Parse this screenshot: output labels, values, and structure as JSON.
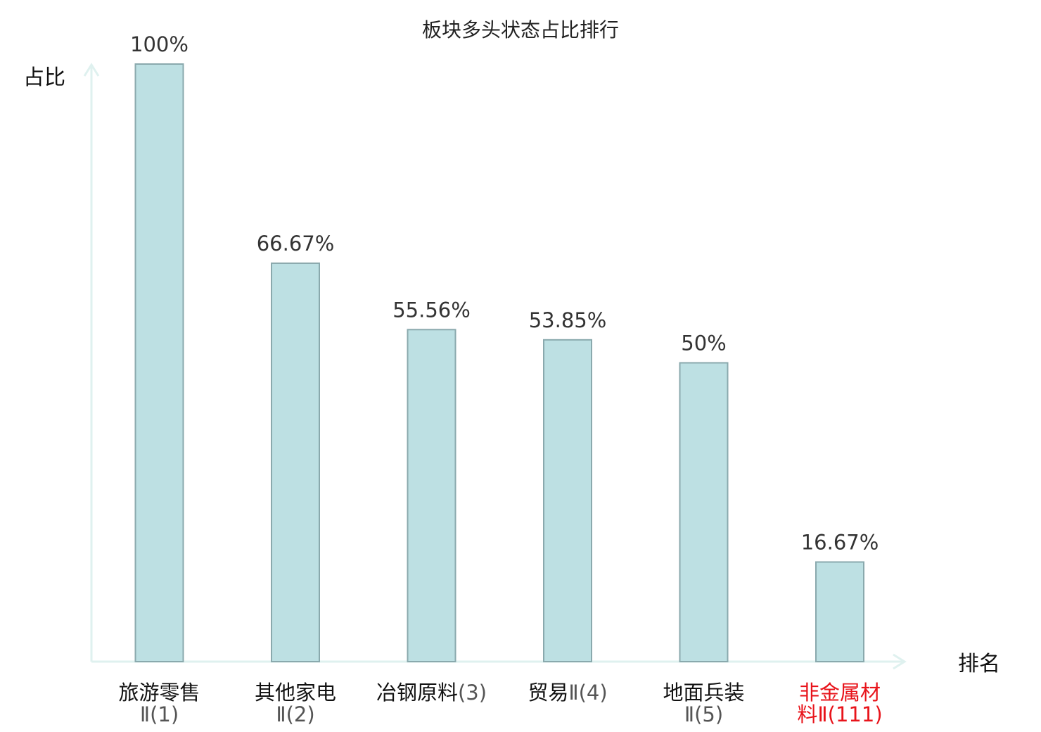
{
  "chart_data": {
    "type": "bar",
    "title": "板块多头状态占比排行",
    "ylabel": "占比",
    "xlabel": "排名",
    "ylim": [
      0,
      100
    ],
    "grid": false,
    "legend": "none",
    "colors": {
      "bar_fill": "#bde0e3",
      "bar_stroke": "#8aa9ad",
      "axis": "#dff1ef",
      "highlight_label": "#e8141b"
    },
    "categories": [
      {
        "line1": "旅游零售",
        "rank_text": "Ⅱ(1)",
        "highlight": false
      },
      {
        "line1": "其他家电",
        "rank_text": "Ⅱ(2)",
        "highlight": false
      },
      {
        "line1": "冶钢原料",
        "rank_text": "(3)",
        "highlight": false
      },
      {
        "line1": "贸易",
        "rank_text": "Ⅱ(4)",
        "highlight": false
      },
      {
        "line1": "地面兵装",
        "rank_text": "Ⅱ(5)",
        "highlight": false
      },
      {
        "line1": "非金属材",
        "line2_prefix": "料",
        "rank_text": "Ⅱ(111)",
        "highlight": true
      }
    ],
    "values": [
      100,
      66.67,
      55.56,
      53.85,
      50,
      16.67
    ],
    "data_labels": [
      "100%",
      "66.67%",
      "55.56%",
      "53.85%",
      "50%",
      "16.67%"
    ]
  }
}
